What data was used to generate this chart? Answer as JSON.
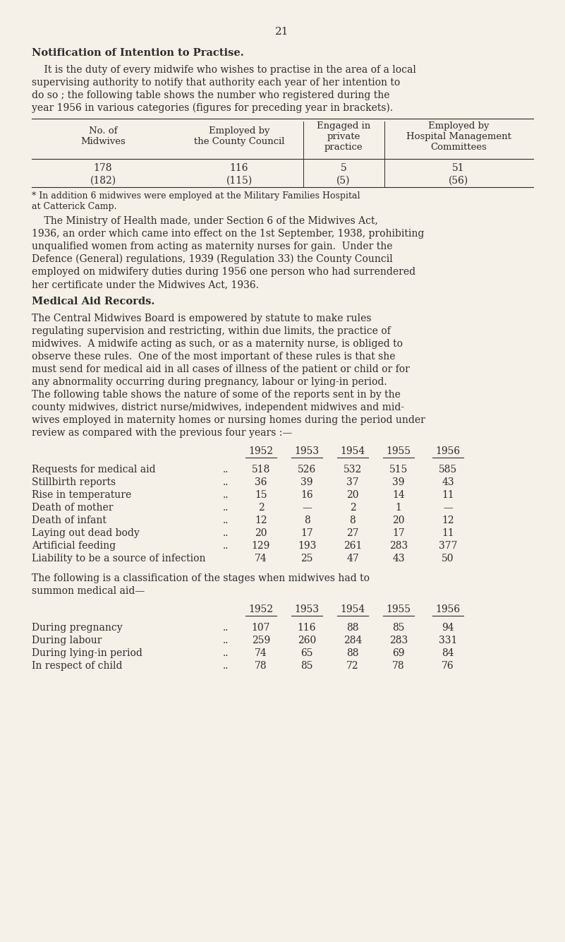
{
  "page_number": "21",
  "bg_color": "#f5f0e8",
  "text_color": "#2c2c2c",
  "section1_title": "Notification of Intention to Practise.",
  "section1_para": "It is the duty of every midwife who wishes to practise in the area of a local supervising authority to notify that authority each year of her intention to do so ; the following table shows the number who registered during the year 1956 in various categories (figures for preceding year in brackets).",
  "table1_headers_col1": [
    "No. of",
    "Midwives"
  ],
  "table1_headers_col2": [
    "Employed by",
    "the County Council"
  ],
  "table1_headers_col3": [
    "Engaged in",
    "private",
    "practice"
  ],
  "table1_headers_col4": [
    "Employed by",
    "Hospital Management",
    "Committees"
  ],
  "table1_row1": [
    "178",
    "116",
    "5",
    "51"
  ],
  "table1_row2": [
    "(182)",
    "(115)",
    "(5)",
    "(56)"
  ],
  "table1_footnote_line1": "* In addition 6 midwives were employed at the Military Families Hospital",
  "table1_footnote_line2": "at Catterick Camp.",
  "para2": "The Ministry of Health made, under Section 6 of the Midwives Act, 1936, an order which came into effect on the 1st September, 1938, prohibiting unqualified women from acting as maternity nurses for gain.  Under the Defence (General) regulations, 1939 (Regulation 33) the County Council employed on midwifery duties during 1956 one person who had surrendered her certificate under the Midwives Act, 1936.",
  "section2_title": "Medical Aid Records.",
  "section2_para_lines": [
    "The Central Midwives Board is empowered by statute to make rules",
    "regulating supervision and restricting, within due limits, the practice of",
    "midwives.  A midwife acting as such, or as a maternity nurse, is obliged to",
    "observe these rules.  One of the most important of these rules is that she",
    "must send for medical aid in all cases of illness of the patient or child or for",
    "any abnormality occurring during pregnancy, labour or lying-in period.",
    "The following table shows the nature of some of the reports sent in by the",
    "county midwives, district nurse/midwives, independent midwives and mid-",
    "wives employed in maternity homes or nursing homes during the period under",
    "review as compared with the previous four years :—"
  ],
  "table2_years": [
    "1952",
    "1953",
    "1954",
    "1955",
    "1956"
  ],
  "table2_rows": [
    {
      "label": "Requests for medical aid",
      "dots": "..",
      "values": [
        "518",
        "526",
        "532",
        "515",
        "585"
      ]
    },
    {
      "label": "Stillbirth reports",
      "dots": "..",
      "values": [
        "36",
        "39",
        "37",
        "39",
        "43"
      ]
    },
    {
      "label": "Rise in temperature",
      "dots": "..",
      "values": [
        "15",
        "16",
        "20",
        "14",
        "11"
      ]
    },
    {
      "label": "Death of mother",
      "dots": "..",
      "values": [
        "2",
        "—",
        "2",
        "1",
        "—"
      ]
    },
    {
      "label": "Death of infant",
      "dots": "\\ ..",
      "values": [
        "12",
        "8",
        "8",
        "20",
        "12"
      ]
    },
    {
      "label": "Laying out dead body",
      "dots": "..",
      "values": [
        "20",
        "17",
        "27",
        "17",
        "11"
      ]
    },
    {
      "label": "Artificial feeding",
      "dots": "..",
      "values": [
        "129",
        "193",
        "261",
        "283",
        "377"
      ]
    },
    {
      "label": "Liability to be a source of infection",
      "dots": "",
      "values": [
        "74",
        "25",
        "47",
        "43",
        "50"
      ]
    }
  ],
  "para3_lines": [
    "The following is a classification of the stages when midwives had to",
    "summon medical aid—"
  ],
  "table3_years": [
    "1952",
    "1953",
    "1954",
    "1955",
    "1956"
  ],
  "table3_rows": [
    {
      "label": "During pregnancy",
      "dots": "..",
      "values": [
        "107",
        "116",
        "88",
        "85",
        "94"
      ]
    },
    {
      "label": "During labour",
      "dots": "..",
      "values": [
        "259",
        "260",
        "284",
        "283",
        "331"
      ]
    },
    {
      "label": "During lying-in period",
      "dots": "..",
      "values": [
        "74",
        "65",
        "88",
        "69",
        "84"
      ]
    },
    {
      "label": "In respect of child",
      "dots": "..",
      "values": [
        "78",
        "85",
        "72",
        "78",
        "76"
      ]
    }
  ],
  "para1_indent_lines": [
    "    It is the duty of every midwife who wishes to practise in the area of a local",
    "supervising authority to notify that authority each year of her intention to",
    "do so ; the following table shows the number who registered during the",
    "year 1956 in various categories (figures for preceding year in brackets)."
  ],
  "para2_indent_lines": [
    "    The Ministry of Health made, under Section 6 of the Midwives Act,",
    "1936, an order which came into effect on the 1st September, 1938, prohibiting",
    "unqualified women from acting as maternity nurses for gain.  Under the",
    "Defence (General) regulations, 1939 (Regulation 33) the County Council",
    "employed on midwifery duties during 1956 one person who had surrendered",
    "her certificate under the Midwives Act, 1936."
  ]
}
